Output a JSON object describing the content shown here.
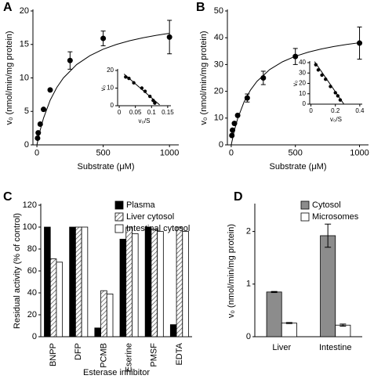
{
  "chart_data": [
    {
      "type": "scatter",
      "label": "A",
      "xlabel": "Substrate (μM)",
      "ylabel": "v₀ (nmol/min/mg protein)",
      "x": [
        5,
        10,
        25,
        50,
        100,
        250,
        500,
        1000
      ],
      "values": [
        1,
        1.8,
        3.1,
        5.3,
        8.2,
        12.6,
        15.9,
        16.1
      ],
      "errors": [
        null,
        null,
        null,
        null,
        null,
        1.3,
        1.1,
        2.5
      ],
      "fit_x": [
        0,
        25,
        50,
        100,
        150,
        200,
        300,
        400,
        500,
        600,
        700,
        800,
        900,
        1000
      ],
      "fit_y": [
        0,
        2.22,
        4,
        6.67,
        8.57,
        10,
        12,
        13.33,
        14.29,
        15,
        15.56,
        16,
        16.36,
        16.67
      ],
      "xlim": [
        -30,
        1070
      ],
      "xticks": [
        0,
        500,
        1000
      ],
      "ylim": [
        0,
        20
      ],
      "yticks": [
        0,
        5,
        10,
        15,
        20
      ],
      "color": "#000000"
    },
    {
      "type": "scatter",
      "xlabel": "v₀/S",
      "ylabel": "v₀",
      "x": [
        0.02,
        0.03,
        0.045,
        0.07,
        0.08,
        0.095,
        0.105,
        0.11
      ],
      "values": [
        16.3,
        15.5,
        13,
        10,
        8.2,
        5.3,
        3,
        1.5
      ],
      "fit_x": [
        0.015,
        0.125
      ],
      "fit_y": [
        18,
        0.5
      ],
      "xlim": [
        -0.005,
        0.16
      ],
      "xticks": [
        0,
        0.05,
        0.1,
        0.15
      ],
      "ylim": [
        0,
        20
      ],
      "yticks": [
        0,
        10,
        20
      ],
      "color": "#000000"
    },
    {
      "type": "scatter",
      "label": "B",
      "xlabel": "Substrate (μM)",
      "ylabel": "v₀ (nmol/min/mg protein)",
      "x": [
        5,
        10,
        25,
        50,
        125,
        250,
        500,
        1000
      ],
      "values": [
        3.5,
        5.5,
        8,
        11,
        17.5,
        25,
        33,
        38
      ],
      "errors": [
        null,
        null,
        null,
        null,
        1.5,
        2.5,
        3,
        6
      ],
      "fit_x": [
        0,
        25,
        50,
        100,
        150,
        200,
        300,
        400,
        500,
        600,
        700,
        800,
        900,
        1000
      ],
      "fit_y": [
        0,
        5.49,
        9.78,
        16.07,
        20.45,
        23.68,
        28.13,
        31.03,
        33.09,
        34.62,
        35.79,
        36.73,
        37.5,
        38.14
      ],
      "xlim": [
        -30,
        1070
      ],
      "xticks": [
        0,
        500,
        1000
      ],
      "ylim": [
        0,
        50
      ],
      "yticks": [
        0,
        10,
        20,
        30,
        40,
        50
      ],
      "color": "#000000"
    },
    {
      "type": "scatter",
      "xlabel": "v₀/S",
      "ylabel": "v₀",
      "x": [
        0.04,
        0.06,
        0.09,
        0.12,
        0.16,
        0.2,
        0.22,
        0.24
      ],
      "values": [
        38,
        33,
        28,
        24,
        17,
        11,
        8,
        4
      ],
      "fit_x": [
        0.03,
        0.27
      ],
      "fit_y": [
        41,
        0
      ],
      "xlim": [
        -0.01,
        0.42
      ],
      "xticks": [
        0,
        0.2,
        0.4
      ],
      "ylim": [
        0,
        40
      ],
      "yticks": [
        0,
        10,
        20,
        30,
        40
      ],
      "color": "#000000"
    },
    {
      "type": "bar",
      "label": "C",
      "xlabel": "Esterase inhibitor",
      "ylabel": "Residual activity (% of control)",
      "categories": [
        "BNPP",
        "DFP",
        "PCMB",
        "Eserine",
        "PMSF",
        "EDTA"
      ],
      "series": [
        {
          "name": "Plasma",
          "color": "#000000",
          "values": [
            100,
            100,
            8,
            89,
            100,
            11
          ]
        },
        {
          "name": "Liver cytosol",
          "color": "#ffffff",
          "pattern": "hatch",
          "values": [
            71,
            100,
            42,
            100,
            98,
            100
          ]
        },
        {
          "name": "Intestinal cytosol",
          "color": "#ffffff",
          "values": [
            68,
            100,
            39,
            94,
            96,
            96
          ]
        }
      ],
      "ylim": [
        0,
        120
      ],
      "yticks": [
        0,
        20,
        40,
        60,
        80,
        100,
        120
      ],
      "legend": "upper right"
    },
    {
      "type": "bar",
      "label": "D",
      "ylabel": "v₀ (nmol/min/mg protein)",
      "categories": [
        "Liver",
        "Intestine"
      ],
      "series": [
        {
          "name": "Cytosol",
          "color": "#8c8c8c",
          "values": [
            0.85,
            1.92
          ],
          "errors": [
            0.01,
            0.22
          ]
        },
        {
          "name": "Microsomes",
          "color": "#ffffff",
          "values": [
            0.26,
            0.22
          ],
          "errors": [
            0.01,
            0.02
          ]
        }
      ],
      "ylim": [
        0,
        2.5
      ],
      "yticks": [
        0,
        1,
        2
      ],
      "legend": "upper right"
    }
  ]
}
